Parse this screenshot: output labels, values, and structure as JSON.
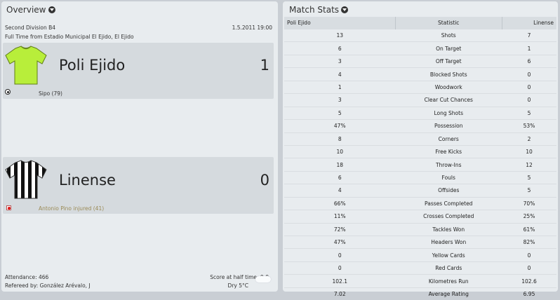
{
  "overview": {
    "title": "Overview",
    "competition": "Second Division B4",
    "date_time": "1.5.2011 19:00",
    "venue_line": "Full Time from Estadio Municipal El Ejido, El Ejido",
    "home": {
      "name": "Poli Ejido",
      "score": "1",
      "shirt_icon": "yellow-green-shirt",
      "events": [
        {
          "icon": "ball-icon",
          "text": "Sipo (79)"
        }
      ]
    },
    "away": {
      "name": "Linense",
      "score": "0",
      "shirt_icon": "black-white-striped-shirt",
      "events": [
        {
          "icon": "injury-icon",
          "text": "Antonio Pino injured (41)"
        }
      ]
    },
    "attendance": "Attendance: 466",
    "referee": "Refereed by: González Arévalo, J",
    "half_time": "Score at half time: 0:0",
    "weather": "Dry 5°C",
    "weather_icon": "cloud-icon"
  },
  "match_stats": {
    "title": "Match Stats",
    "columns": [
      "Poli Ejido",
      "Statistic",
      "Linense"
    ],
    "rows": [
      {
        "home": "13",
        "stat": "Shots",
        "away": "7"
      },
      {
        "home": "6",
        "stat": "On Target",
        "away": "1"
      },
      {
        "home": "3",
        "stat": "Off Target",
        "away": "6"
      },
      {
        "home": "4",
        "stat": "Blocked Shots",
        "away": "0"
      },
      {
        "home": "1",
        "stat": "Woodwork",
        "away": "0"
      },
      {
        "home": "3",
        "stat": "Clear Cut Chances",
        "away": "0"
      },
      {
        "home": "5",
        "stat": "Long Shots",
        "away": "5"
      },
      {
        "home": "47%",
        "stat": "Possession",
        "away": "53%"
      },
      {
        "home": "8",
        "stat": "Corners",
        "away": "2"
      },
      {
        "home": "10",
        "stat": "Free Kicks",
        "away": "10"
      },
      {
        "home": "18",
        "stat": "Throw-Ins",
        "away": "12"
      },
      {
        "home": "6",
        "stat": "Fouls",
        "away": "5"
      },
      {
        "home": "4",
        "stat": "Offsides",
        "away": "5"
      },
      {
        "home": "66%",
        "stat": "Passes Completed",
        "away": "70%"
      },
      {
        "home": "11%",
        "stat": "Crosses Completed",
        "away": "25%"
      },
      {
        "home": "72%",
        "stat": "Tackles Won",
        "away": "61%"
      },
      {
        "home": "47%",
        "stat": "Headers Won",
        "away": "82%"
      },
      {
        "home": "0",
        "stat": "Yellow Cards",
        "away": "0"
      },
      {
        "home": "0",
        "stat": "Red Cards",
        "away": "0"
      },
      {
        "home": "102.1",
        "stat": "Kilometres Run",
        "away": "102.6"
      },
      {
        "home": "7.02",
        "stat": "Average Rating",
        "away": "6.95"
      }
    ]
  },
  "colors": {
    "background": "#c9ced4",
    "panel": "#e8ecef",
    "team_box": "#d5dade",
    "home_shirt": "#b8ee3a",
    "injury_text": "#9a8a55"
  }
}
